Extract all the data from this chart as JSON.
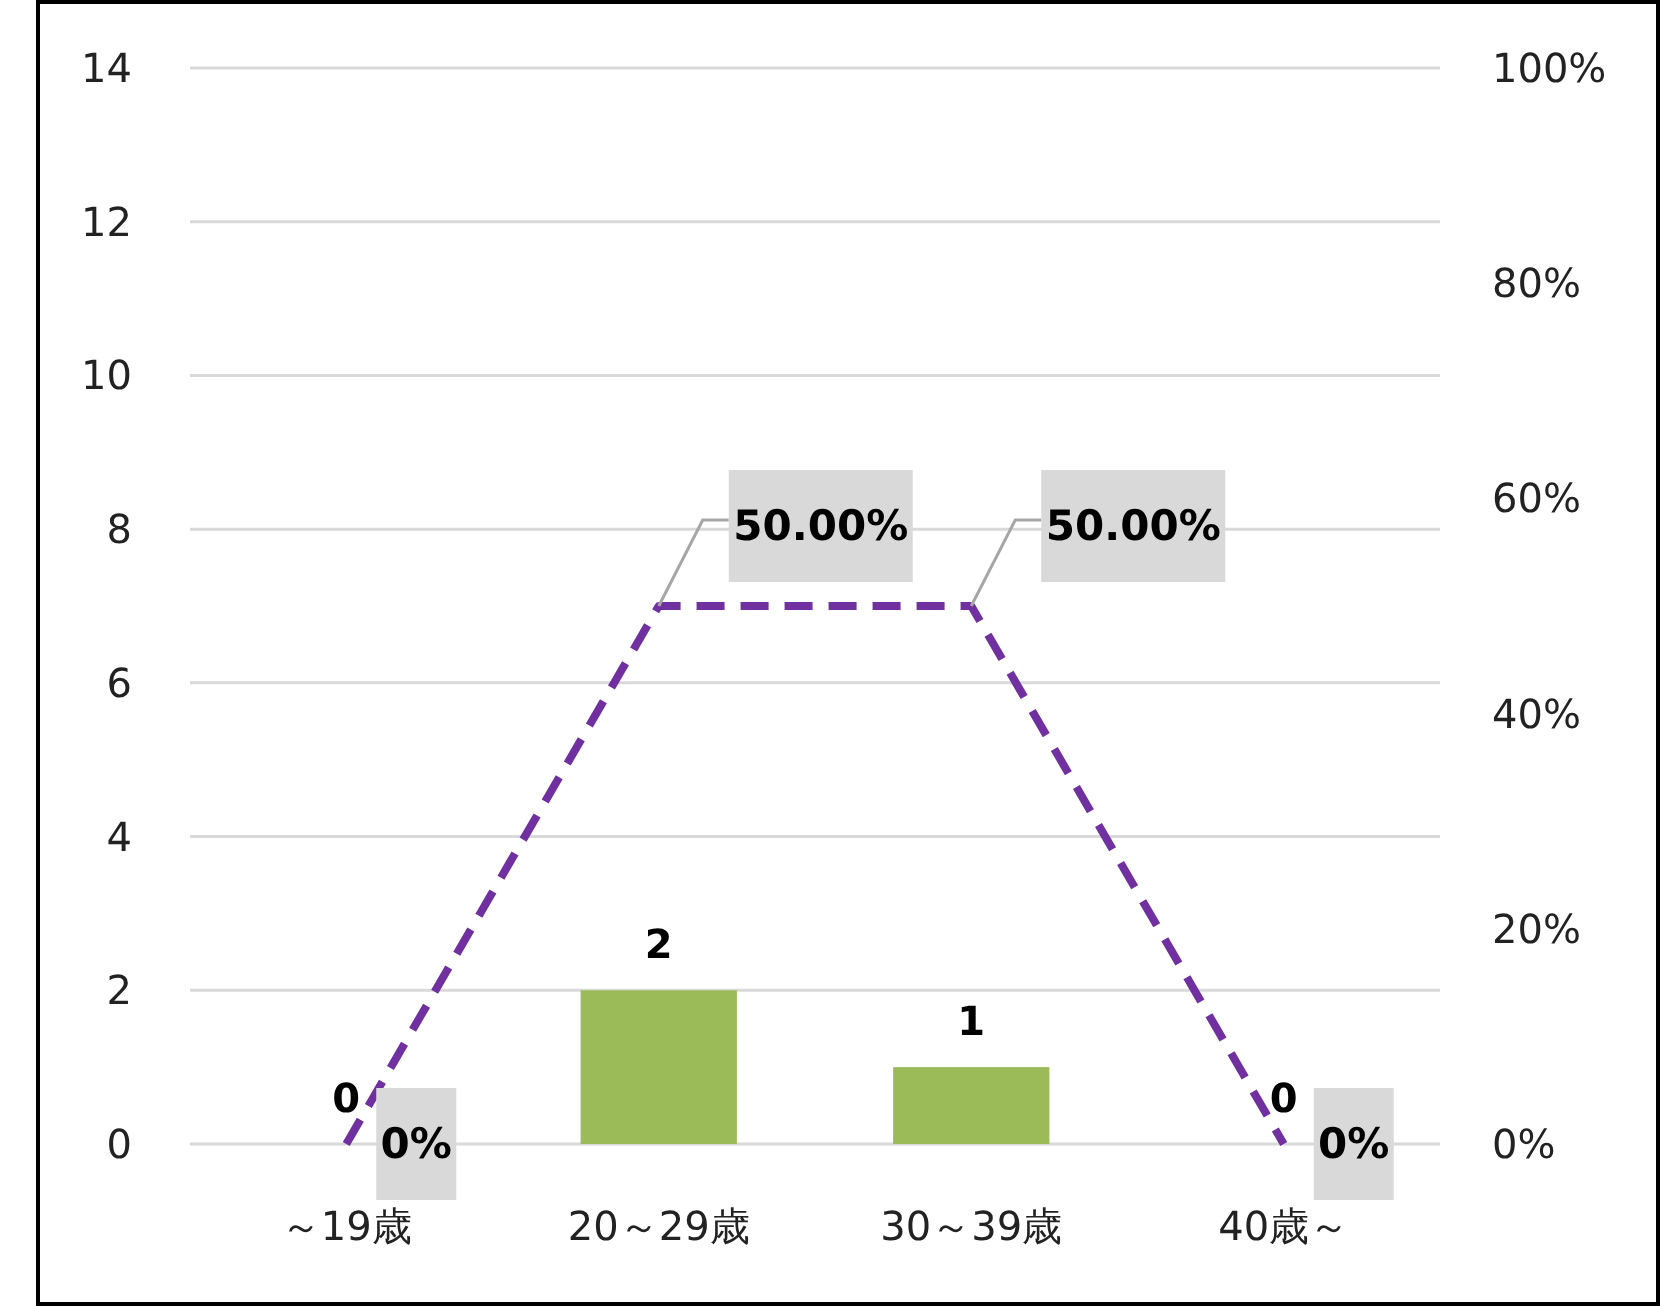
{
  "chart_data": {
    "type": "bar",
    "categories": [
      "～19歳",
      "20～29歳",
      "30～39歳",
      "40歳～"
    ],
    "series": [
      {
        "color": "#9bbb59",
        "values": [
          0,
          2,
          1,
          0
        ],
        "data_labels": true
      },
      {
        "type": "line",
        "axis": "y2",
        "color": "#7030a0",
        "line_style": "dashed",
        "values": [
          0,
          50,
          50,
          0
        ],
        "value_labels": [
          "0%",
          "50.00%",
          "50.00%",
          "0%"
        ]
      }
    ],
    "ylim": [
      0,
      14
    ],
    "yticks": [
      0,
      2,
      4,
      6,
      8,
      10,
      12,
      14
    ],
    "y2lim": [
      0,
      100
    ],
    "y2ticks": [
      {
        "value": 0,
        "label": "0%"
      },
      {
        "value": 20,
        "label": "20%"
      },
      {
        "value": 40,
        "label": "40%"
      },
      {
        "value": 60,
        "label": "60%"
      },
      {
        "value": 80,
        "label": "80%"
      },
      {
        "value": 100,
        "label": "100%"
      }
    ],
    "grid": "y"
  }
}
